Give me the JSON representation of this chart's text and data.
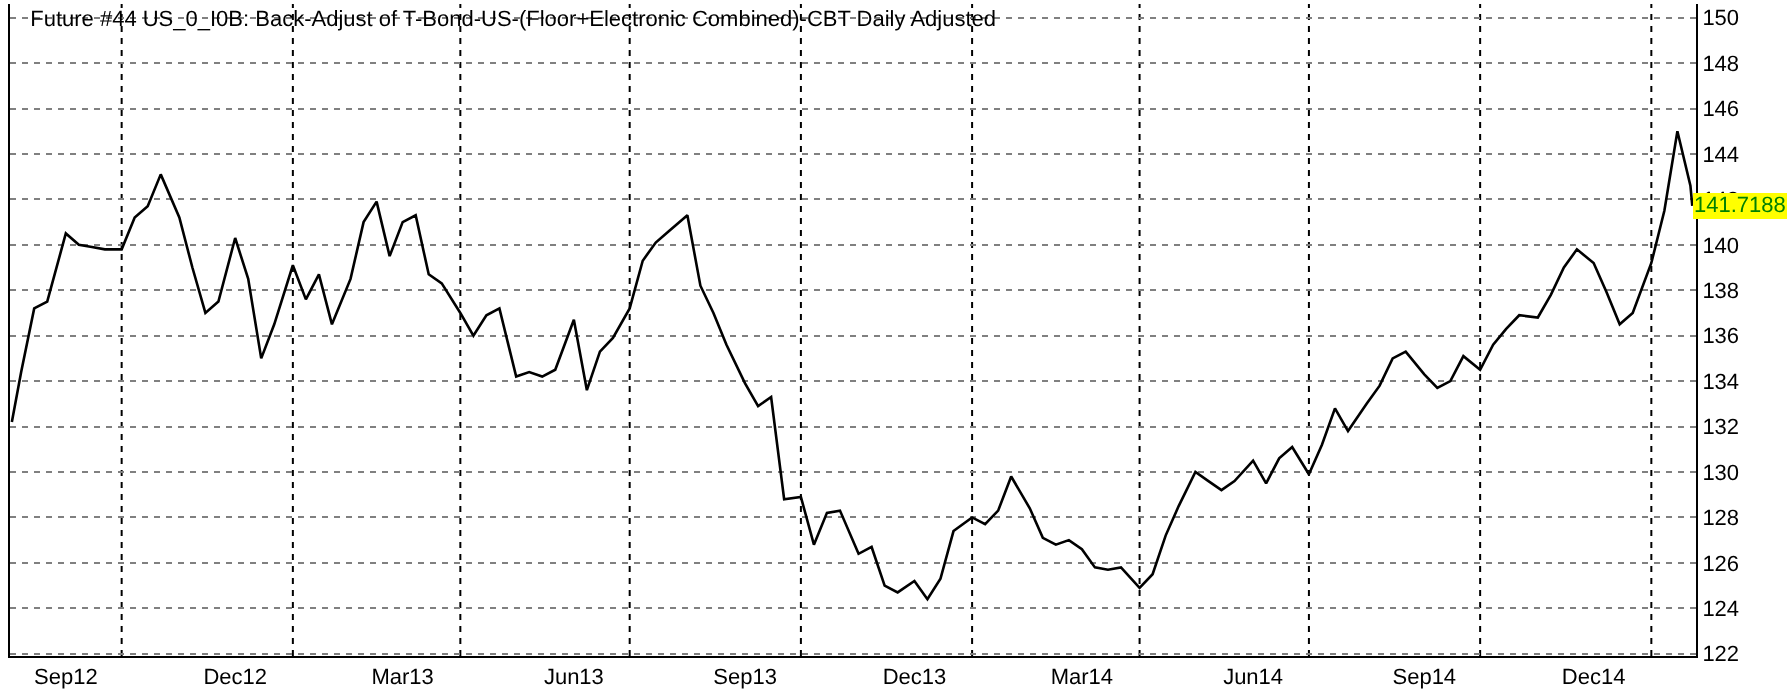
{
  "chart_data": {
    "type": "line",
    "title": "Future #44 US_0_I0B: Back-Adjust of T-Bond-US-(Floor+Electronic Combined)-CBT Daily Adjusted",
    "x": [
      "2012-08-03",
      "2012-08-08",
      "2012-08-15",
      "2012-08-22",
      "2012-09-01",
      "2012-09-08",
      "2012-09-15",
      "2012-09-22",
      "2012-10-01",
      "2012-10-08",
      "2012-10-15",
      "2012-10-22",
      "2012-11-01",
      "2012-11-08",
      "2012-11-15",
      "2012-11-22",
      "2012-12-01",
      "2012-12-08",
      "2012-12-15",
      "2012-12-22",
      "2013-01-01",
      "2013-01-08",
      "2013-01-15",
      "2013-01-22",
      "2013-02-01",
      "2013-02-08",
      "2013-02-15",
      "2013-02-22",
      "2013-03-01",
      "2013-03-08",
      "2013-03-15",
      "2013-03-22",
      "2013-04-01",
      "2013-04-08",
      "2013-04-15",
      "2013-04-22",
      "2013-05-01",
      "2013-05-08",
      "2013-05-15",
      "2013-05-22",
      "2013-06-01",
      "2013-06-08",
      "2013-06-15",
      "2013-06-22",
      "2013-07-01",
      "2013-07-08",
      "2013-07-15",
      "2013-07-22",
      "2013-08-01",
      "2013-08-08",
      "2013-08-15",
      "2013-08-22",
      "2013-09-01",
      "2013-09-08",
      "2013-09-15",
      "2013-09-22",
      "2013-10-01",
      "2013-10-08",
      "2013-10-15",
      "2013-10-22",
      "2013-11-01",
      "2013-11-08",
      "2013-11-15",
      "2013-11-22",
      "2013-12-01",
      "2013-12-08",
      "2013-12-15",
      "2013-12-22",
      "2014-01-01",
      "2014-01-08",
      "2014-01-15",
      "2014-01-22",
      "2014-02-01",
      "2014-02-08",
      "2014-02-15",
      "2014-02-22",
      "2014-03-01",
      "2014-03-08",
      "2014-03-15",
      "2014-03-22",
      "2014-04-01",
      "2014-04-08",
      "2014-04-15",
      "2014-04-22",
      "2014-05-01",
      "2014-05-08",
      "2014-05-15",
      "2014-05-22",
      "2014-06-01",
      "2014-06-08",
      "2014-06-15",
      "2014-06-22",
      "2014-07-01",
      "2014-07-08",
      "2014-07-15",
      "2014-07-22",
      "2014-08-01",
      "2014-08-08",
      "2014-08-15",
      "2014-08-22",
      "2014-09-01",
      "2014-09-08",
      "2014-09-15",
      "2014-09-22",
      "2014-10-01",
      "2014-10-08",
      "2014-10-15",
      "2014-10-22",
      "2014-11-01",
      "2014-11-08",
      "2014-11-15",
      "2014-11-22",
      "2014-12-01",
      "2014-12-08",
      "2014-12-15",
      "2014-12-22",
      "2015-01-01",
      "2015-01-08",
      "2015-01-15",
      "2015-01-22",
      "2015-01-23"
    ],
    "series": [
      {
        "color": "#000000",
        "values": [
          132.2,
          134.4,
          137.2,
          137.5,
          140.5,
          140.0,
          139.9,
          139.8,
          139.8,
          141.2,
          141.7,
          143.1,
          141.2,
          139.0,
          137.0,
          137.5,
          140.3,
          138.5,
          135.0,
          136.5,
          139.1,
          137.6,
          138.7,
          136.5,
          138.5,
          141.0,
          141.9,
          139.5,
          141.0,
          141.3,
          138.7,
          138.3,
          137.0,
          136.0,
          136.9,
          137.2,
          134.2,
          134.4,
          134.2,
          134.5,
          136.7,
          133.6,
          135.3,
          135.9,
          137.2,
          139.3,
          140.1,
          140.6,
          141.3,
          138.2,
          137.0,
          135.6,
          133.9,
          132.9,
          133.3,
          128.8,
          128.9,
          126.8,
          128.2,
          128.3,
          126.4,
          126.7,
          125.0,
          124.7,
          125.2,
          124.4,
          125.3,
          127.4,
          128.0,
          127.7,
          128.3,
          129.8,
          128.4,
          127.1,
          126.8,
          127.0,
          126.6,
          125.8,
          125.7,
          125.8,
          124.9,
          125.5,
          127.2,
          128.5,
          130.0,
          129.6,
          129.2,
          129.6,
          130.5,
          129.5,
          130.6,
          131.1,
          129.9,
          131.2,
          132.8,
          131.8,
          133.0,
          133.8,
          135.0,
          135.3,
          134.3,
          133.7,
          134.0,
          135.1,
          134.5,
          135.6,
          136.3,
          136.9,
          136.8,
          137.8,
          139.0,
          139.8,
          139.2,
          137.9,
          136.5,
          137.0,
          139.2,
          141.5,
          145.0,
          142.6,
          141.7188
        ]
      }
    ],
    "xlim": [
      "2012-08-02",
      "2015-01-25"
    ],
    "xticks": [
      {
        "value": "2012-09-01",
        "label": "Sep12"
      },
      {
        "value": "2012-10-01",
        "label": null
      },
      {
        "value": "2012-12-01",
        "label": "Dec12"
      },
      {
        "value": "2013-01-01",
        "label": null
      },
      {
        "value": "2013-03-01",
        "label": "Mar13"
      },
      {
        "value": "2013-04-01",
        "label": null
      },
      {
        "value": "2013-06-01",
        "label": "Jun13"
      },
      {
        "value": "2013-07-01",
        "label": null
      },
      {
        "value": "2013-09-01",
        "label": "Sep13"
      },
      {
        "value": "2013-10-01",
        "label": null
      },
      {
        "value": "2013-12-01",
        "label": "Dec13"
      },
      {
        "value": "2014-01-01",
        "label": null
      },
      {
        "value": "2014-03-01",
        "label": "Mar14"
      },
      {
        "value": "2014-04-01",
        "label": null
      },
      {
        "value": "2014-06-01",
        "label": "Jun14"
      },
      {
        "value": "2014-07-01",
        "label": null
      },
      {
        "value": "2014-09-01",
        "label": "Sep14"
      },
      {
        "value": "2014-10-01",
        "label": null
      },
      {
        "value": "2014-12-01",
        "label": "Dec14"
      },
      {
        "value": "2015-01-01",
        "label": null
      }
    ],
    "ylim": [
      121.9,
      150.6
    ],
    "yticks": [
      122,
      124,
      126,
      128,
      130,
      132,
      134,
      136,
      138,
      140,
      142,
      144,
      146,
      148,
      150
    ],
    "annotations": [
      {
        "text": "141.7188",
        "x": "2015-01-23",
        "y": 141.7188
      }
    ],
    "grid": true,
    "marker": "none",
    "line_style": "solid"
  }
}
